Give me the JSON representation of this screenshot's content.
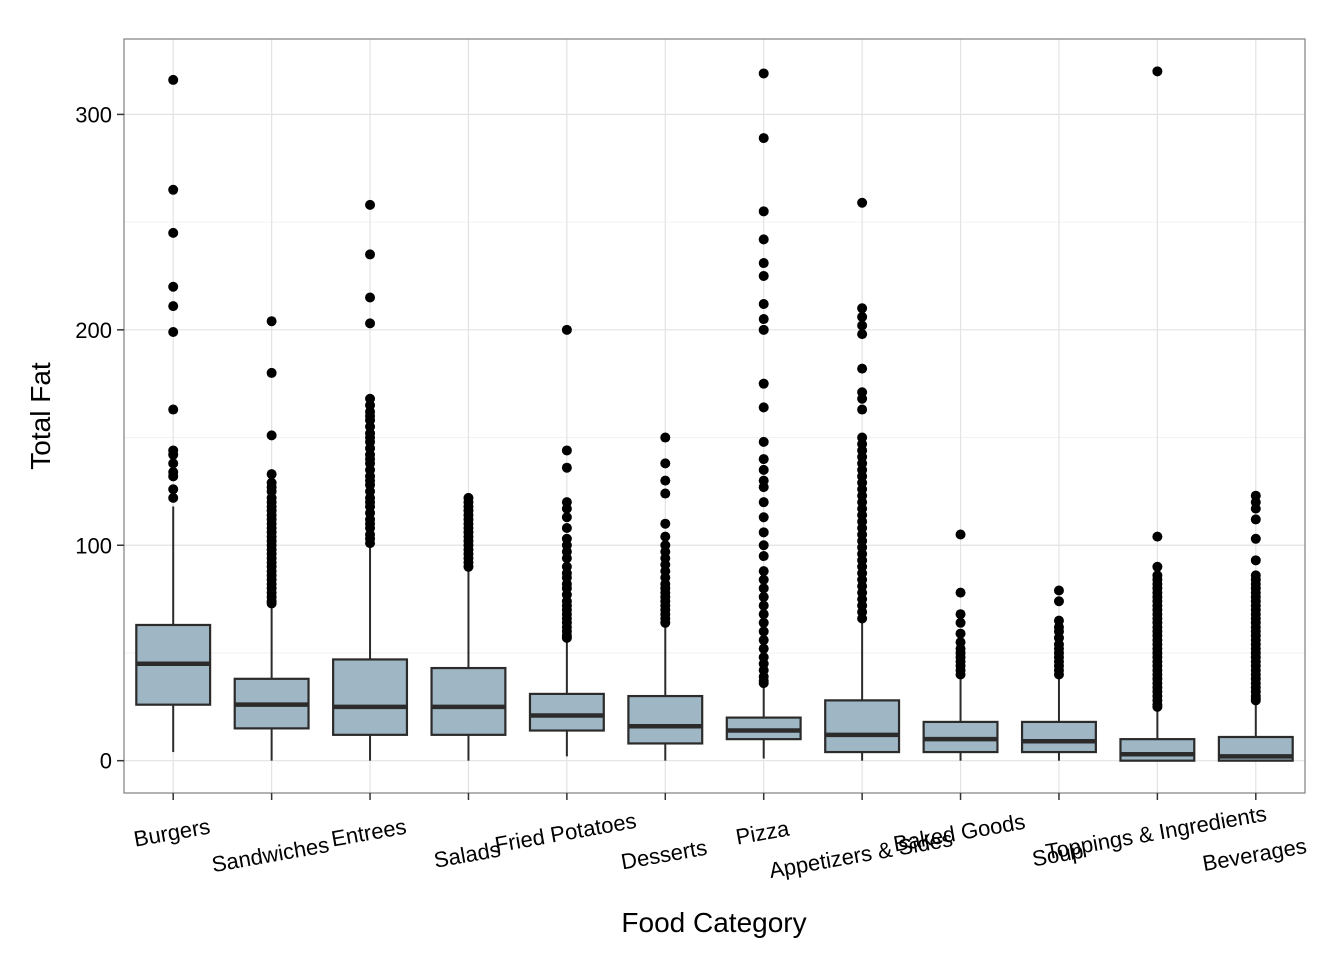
{
  "chart_data": {
    "type": "boxplot",
    "title": "",
    "xlabel": "Food Category",
    "ylabel": "Total Fat",
    "ylim": [
      -15,
      335
    ],
    "yticks": [
      0,
      100,
      200,
      300
    ],
    "grid": true,
    "legend": "none",
    "colors": {
      "box_fill": "#9fb6c4",
      "box_stroke": "#2b2b2b",
      "median": "#2b2b2b",
      "outlier": "#000000",
      "grid": "#e3e3e3",
      "panel_border": "#7f7f7f"
    },
    "categories": [
      "Burgers",
      "Sandwiches",
      "Entrees",
      "Salads",
      "Fried Potatoes",
      "Desserts",
      "Pizza",
      "Appetizers & Sides",
      "Baked Goods",
      "Soup",
      "Toppings & Ingredients",
      "Beverages"
    ],
    "boxes": [
      {
        "q1": 26,
        "median": 45,
        "q3": 63,
        "lower": 4,
        "upper": 118,
        "outliers": [
          316,
          265,
          245,
          220,
          211,
          199,
          163,
          144,
          142,
          138,
          134,
          132,
          126,
          122
        ]
      },
      {
        "q1": 15,
        "median": 26,
        "q3": 38,
        "lower": 0,
        "upper": 72,
        "outliers": [
          204,
          180,
          151,
          133,
          129,
          127,
          125,
          122,
          120,
          118,
          116,
          114,
          112,
          110,
          108,
          106,
          104,
          102,
          100,
          98,
          96,
          94,
          92,
          90,
          88,
          86,
          84,
          82,
          80,
          78,
          76,
          74,
          73
        ]
      },
      {
        "q1": 12,
        "median": 25,
        "q3": 47,
        "lower": 0,
        "upper": 100,
        "outliers": [
          258,
          235,
          215,
          203,
          168,
          165,
          162,
          160,
          158,
          155,
          152,
          150,
          148,
          145,
          142,
          140,
          138,
          135,
          132,
          130,
          128,
          125,
          122,
          120,
          118,
          115,
          112,
          110,
          108,
          105,
          103,
          101
        ]
      },
      {
        "q1": 12,
        "median": 25,
        "q3": 43,
        "lower": 0,
        "upper": 89,
        "outliers": [
          122,
          120,
          118,
          116,
          114,
          112,
          110,
          108,
          106,
          104,
          102,
          100,
          98,
          96,
          94,
          92,
          90
        ]
      },
      {
        "q1": 14,
        "median": 21,
        "q3": 31,
        "lower": 2,
        "upper": 55,
        "outliers": [
          200,
          144,
          136,
          120,
          117,
          113,
          108,
          103,
          100,
          97,
          94,
          90,
          87,
          85,
          82,
          80,
          77,
          74,
          72,
          70,
          68,
          66,
          64,
          62,
          60,
          58,
          57
        ]
      },
      {
        "q1": 8,
        "median": 16,
        "q3": 30,
        "lower": 0,
        "upper": 62,
        "outliers": [
          150,
          138,
          130,
          124,
          110,
          104,
          100,
          97,
          94,
          91,
          88,
          85,
          82,
          80,
          78,
          76,
          74,
          72,
          70,
          68,
          66,
          64
        ]
      },
      {
        "q1": 10,
        "median": 14,
        "q3": 20,
        "lower": 1,
        "upper": 35,
        "outliers": [
          319,
          289,
          255,
          242,
          231,
          225,
          212,
          205,
          200,
          175,
          164,
          148,
          140,
          135,
          130,
          127,
          120,
          113,
          106,
          100,
          95,
          88,
          84,
          80,
          76,
          72,
          68,
          64,
          60,
          56,
          52,
          48,
          45,
          42,
          39,
          37,
          36
        ]
      },
      {
        "q1": 4,
        "median": 12,
        "q3": 28,
        "lower": 0,
        "upper": 64,
        "outliers": [
          259,
          210,
          206,
          202,
          198,
          182,
          171,
          168,
          163,
          150,
          147,
          144,
          141,
          138,
          135,
          132,
          129,
          126,
          123,
          120,
          117,
          114,
          111,
          108,
          105,
          102,
          99,
          96,
          93,
          90,
          87,
          84,
          81,
          78,
          75,
          72,
          69,
          66
        ]
      },
      {
        "q1": 4,
        "median": 10,
        "q3": 18,
        "lower": 0,
        "upper": 39,
        "outliers": [
          105,
          78,
          68,
          64,
          59,
          55,
          52,
          50,
          48,
          46,
          44,
          42,
          40
        ]
      },
      {
        "q1": 4,
        "median": 9,
        "q3": 18,
        "lower": 0,
        "upper": 39,
        "outliers": [
          79,
          74,
          65,
          62,
          60,
          57,
          54,
          52,
          50,
          48,
          46,
          44,
          42,
          40
        ]
      },
      {
        "q1": 0,
        "median": 3,
        "q3": 10,
        "lower": 0,
        "upper": 24,
        "outliers": [
          320,
          104,
          90,
          86,
          84,
          82,
          80,
          78,
          76,
          74,
          72,
          70,
          68,
          66,
          64,
          62,
          60,
          58,
          56,
          54,
          52,
          50,
          48,
          46,
          44,
          42,
          40,
          38,
          36,
          34,
          32,
          30,
          28,
          26,
          25
        ]
      },
      {
        "q1": 0,
        "median": 2,
        "q3": 11,
        "lower": 0,
        "upper": 27,
        "outliers": [
          123,
          120,
          117,
          112,
          103,
          93,
          86,
          84,
          82,
          80,
          78,
          76,
          74,
          72,
          70,
          68,
          66,
          64,
          62,
          60,
          58,
          56,
          54,
          52,
          50,
          48,
          46,
          44,
          42,
          40,
          38,
          36,
          34,
          32,
          30,
          29,
          28
        ]
      }
    ]
  }
}
